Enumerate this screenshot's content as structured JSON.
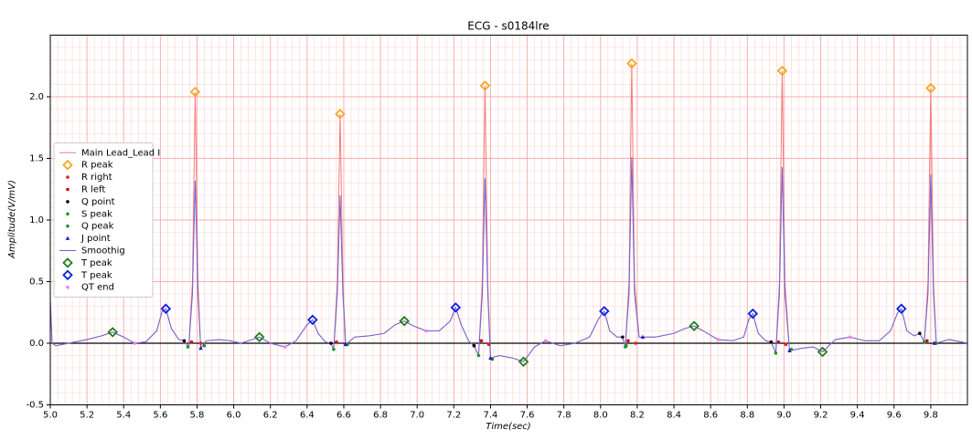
{
  "chart_data": {
    "type": "line",
    "title": "ECG - s0184lre",
    "xlabel": "Time(sec)",
    "ylabel": "Amplitude(V/mV)",
    "xlim": [
      5.0,
      10.0
    ],
    "ylim": [
      -0.5,
      2.5
    ],
    "xticks": [
      {
        "value": 5,
        "label": "5.0"
      },
      5.2,
      5.4,
      5.6,
      5.8,
      {
        "value": 6,
        "label": "6.0"
      },
      6.2,
      6.4,
      6.6,
      6.8,
      {
        "value": 7,
        "label": "7.0"
      },
      7.2,
      7.4,
      7.6,
      7.8,
      {
        "value": 8,
        "label": "8.0"
      },
      8.2,
      8.4,
      8.6,
      8.8,
      {
        "value": 9,
        "label": "9.0"
      },
      9.2,
      9.4,
      9.6,
      9.8
    ],
    "yticks": [
      -0.5,
      {
        "value": 0,
        "label": "0.0"
      },
      0.5,
      {
        "value": 1,
        "label": "1.0"
      },
      1.5,
      {
        "value": 2,
        "label": "2.0"
      }
    ],
    "grid": true,
    "legend": "center left",
    "zero_line": 0,
    "x": [
      5.0,
      5.01,
      5.03,
      5.1,
      5.2,
      5.28,
      5.34,
      5.4,
      5.46,
      5.52,
      5.58,
      5.61,
      5.63,
      5.66,
      5.7,
      5.73,
      5.755,
      5.775,
      5.79,
      5.805,
      5.82,
      5.85,
      5.92,
      5.98,
      6.04,
      6.1,
      6.14,
      6.2,
      6.28,
      6.34,
      6.4,
      6.43,
      6.46,
      6.5,
      6.53,
      6.545,
      6.565,
      6.58,
      6.595,
      6.61,
      6.66,
      6.74,
      6.82,
      6.88,
      6.93,
      6.98,
      7.05,
      7.12,
      7.18,
      7.21,
      7.24,
      7.28,
      7.31,
      7.335,
      7.355,
      7.37,
      7.385,
      7.4,
      7.45,
      7.52,
      7.58,
      7.64,
      7.7,
      7.78,
      7.86,
      7.94,
      7.99,
      8.02,
      8.05,
      8.09,
      8.12,
      8.135,
      8.155,
      8.17,
      8.185,
      8.21,
      8.3,
      8.4,
      8.46,
      8.51,
      8.56,
      8.64,
      8.72,
      8.78,
      8.81,
      8.83,
      8.86,
      8.9,
      8.93,
      8.955,
      8.975,
      8.99,
      9.005,
      9.03,
      9.1,
      9.16,
      9.21,
      9.28,
      9.36,
      9.44,
      9.52,
      9.58,
      9.62,
      9.64,
      9.67,
      9.71,
      9.74,
      9.765,
      9.785,
      9.8,
      9.815,
      9.83,
      9.9,
      10.0
    ],
    "series": [
      {
        "name": "Main Lead_Lead I",
        "kind": "line",
        "color": "#f47a7a",
        "values": [
          0.35,
          0.0,
          -0.02,
          0.0,
          0.03,
          0.06,
          0.09,
          0.05,
          0.0,
          0.01,
          0.1,
          0.26,
          0.28,
          0.12,
          0.03,
          0.02,
          -0.03,
          0.5,
          2.04,
          0.5,
          -0.04,
          0.02,
          0.03,
          0.02,
          0.0,
          0.03,
          0.05,
          0.0,
          -0.03,
          0.02,
          0.15,
          0.19,
          0.08,
          0.01,
          0.0,
          -0.05,
          0.5,
          1.86,
          0.5,
          -0.01,
          0.05,
          0.06,
          0.08,
          0.15,
          0.18,
          0.14,
          0.1,
          0.1,
          0.18,
          0.29,
          0.15,
          0.02,
          -0.02,
          -0.1,
          0.5,
          2.09,
          0.5,
          -0.12,
          -0.1,
          -0.12,
          -0.15,
          -0.03,
          0.02,
          -0.02,
          0.0,
          0.05,
          0.2,
          0.26,
          0.1,
          0.05,
          0.05,
          -0.03,
          0.5,
          2.27,
          0.5,
          0.05,
          0.05,
          0.08,
          0.12,
          0.14,
          0.1,
          0.03,
          0.02,
          0.05,
          0.2,
          0.24,
          0.08,
          0.02,
          0.01,
          -0.08,
          0.5,
          2.21,
          0.5,
          -0.06,
          -0.04,
          -0.03,
          -0.07,
          0.03,
          0.05,
          0.02,
          0.02,
          0.1,
          0.25,
          0.28,
          0.1,
          0.06,
          0.08,
          0.01,
          0.5,
          2.07,
          0.5,
          0.0,
          0.03,
          0.0
        ]
      },
      {
        "name": "R peak",
        "kind": "marker",
        "marker": "diamond",
        "color": "#f5a623",
        "x": [
          5.79,
          6.58,
          7.37,
          8.17,
          8.99,
          9.8
        ],
        "values": [
          2.04,
          1.86,
          2.09,
          2.27,
          2.21,
          2.07
        ]
      },
      {
        "name": "R right",
        "kind": "marker",
        "marker": "dot",
        "color": "#e8201a",
        "x": [
          5.82,
          6.61,
          7.39,
          8.19,
          9.01,
          9.82
        ],
        "values": [
          0.0,
          -0.01,
          -0.01,
          0.0,
          -0.01,
          0.0
        ]
      },
      {
        "name": "R left",
        "kind": "marker",
        "marker": "dot",
        "color": "#d0021b",
        "x": [
          5.77,
          6.56,
          7.35,
          8.15,
          8.97,
          9.78
        ],
        "values": [
          0.01,
          0.01,
          0.02,
          0.02,
          0.01,
          0.02
        ]
      },
      {
        "name": "Q point",
        "kind": "marker",
        "marker": "dot",
        "color": "#000000",
        "x": [
          5.73,
          6.53,
          7.31,
          8.12,
          8.93,
          9.74
        ],
        "values": [
          0.02,
          0.0,
          -0.02,
          0.05,
          0.01,
          0.08
        ]
      },
      {
        "name": "S peak",
        "kind": "marker",
        "marker": "dot",
        "color": "#1a9a1a",
        "x": [
          5.75,
          6.545,
          7.335,
          8.135,
          8.955,
          9.765
        ],
        "values": [
          -0.03,
          -0.05,
          -0.1,
          -0.03,
          -0.08,
          0.01
        ]
      },
      {
        "name": "Q peak",
        "kind": "marker",
        "marker": "dot",
        "color": "#2e8b2e",
        "x": [
          5.84,
          6.62,
          7.41,
          8.14,
          9.04,
          9.83
        ],
        "values": [
          -0.02,
          -0.01,
          -0.13,
          -0.02,
          -0.05,
          0.0
        ]
      },
      {
        "name": "J point",
        "kind": "marker",
        "marker": "triangle",
        "color": "#1a1acc",
        "x": [
          5.82,
          6.61,
          7.4,
          8.23,
          9.03,
          9.82
        ],
        "values": [
          -0.04,
          -0.01,
          -0.12,
          0.05,
          -0.06,
          0.0
        ]
      },
      {
        "name": "Smoothig",
        "kind": "line",
        "color": "#6b63d8",
        "values": [
          0.35,
          0.0,
          -0.02,
          0.0,
          0.03,
          0.06,
          0.09,
          0.05,
          0.0,
          0.01,
          0.1,
          0.26,
          0.28,
          0.12,
          0.03,
          0.02,
          -0.03,
          0.4,
          1.32,
          0.4,
          -0.04,
          0.02,
          0.03,
          0.02,
          0.0,
          0.03,
          0.05,
          0.0,
          -0.03,
          0.02,
          0.15,
          0.19,
          0.08,
          0.01,
          0.0,
          -0.05,
          0.4,
          1.2,
          0.4,
          -0.01,
          0.05,
          0.06,
          0.08,
          0.15,
          0.18,
          0.14,
          0.1,
          0.1,
          0.18,
          0.29,
          0.15,
          0.02,
          -0.02,
          -0.1,
          0.4,
          1.34,
          0.4,
          -0.12,
          -0.1,
          -0.12,
          -0.15,
          -0.03,
          0.02,
          -0.02,
          0.0,
          0.05,
          0.2,
          0.26,
          0.1,
          0.05,
          0.05,
          -0.03,
          0.4,
          1.51,
          0.4,
          0.05,
          0.05,
          0.08,
          0.12,
          0.14,
          0.1,
          0.03,
          0.02,
          0.05,
          0.2,
          0.24,
          0.08,
          0.02,
          0.01,
          -0.08,
          0.4,
          1.43,
          0.4,
          -0.06,
          -0.04,
          -0.03,
          -0.07,
          0.03,
          0.05,
          0.02,
          0.02,
          0.1,
          0.25,
          0.28,
          0.1,
          0.06,
          0.08,
          0.01,
          0.4,
          1.37,
          0.4,
          0.0,
          0.03,
          0.0
        ]
      },
      {
        "name": "T peak",
        "kind": "marker",
        "marker": "diamond",
        "color": "#1e7d1e",
        "x": [
          5.34,
          6.14,
          6.93,
          7.58,
          8.51,
          9.21
        ],
        "values": [
          0.09,
          0.05,
          0.18,
          -0.15,
          0.14,
          -0.07
        ]
      },
      {
        "name": "T peak",
        "kind": "marker",
        "marker": "diamond",
        "color": "#0a1ee0",
        "x": [
          5.63,
          6.43,
          7.21,
          8.02,
          8.83,
          9.64
        ],
        "values": [
          0.28,
          0.19,
          0.29,
          0.26,
          0.24,
          0.28
        ]
      },
      {
        "name": "QT end",
        "kind": "marker",
        "marker": "dot",
        "color": "#f07ee8",
        "x": [
          5.46,
          6.28,
          7.05,
          7.7,
          8.64,
          9.36
        ],
        "values": [
          0.0,
          -0.03,
          0.1,
          0.02,
          0.03,
          0.05
        ]
      }
    ]
  }
}
